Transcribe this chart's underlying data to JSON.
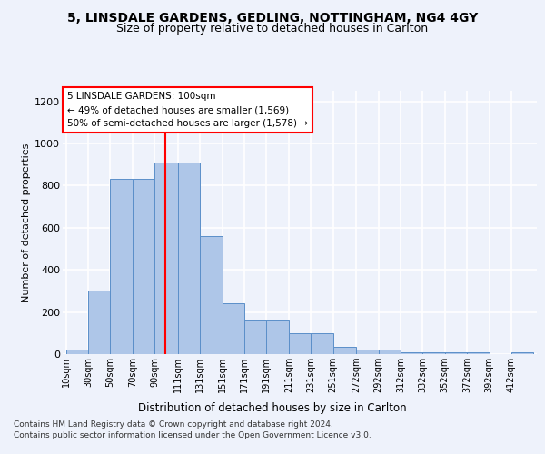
{
  "title1": "5, LINSDALE GARDENS, GEDLING, NOTTINGHAM, NG4 4GY",
  "title2": "Size of property relative to detached houses in Carlton",
  "xlabel": "Distribution of detached houses by size in Carlton",
  "ylabel": "Number of detached properties",
  "bin_labels": [
    "10sqm",
    "30sqm",
    "50sqm",
    "70sqm",
    "90sqm",
    "111sqm",
    "131sqm",
    "151sqm",
    "171sqm",
    "191sqm",
    "211sqm",
    "231sqm",
    "251sqm",
    "272sqm",
    "292sqm",
    "312sqm",
    "332sqm",
    "352sqm",
    "372sqm",
    "392sqm",
    "412sqm"
  ],
  "bin_edges": [
    10,
    30,
    50,
    70,
    90,
    111,
    131,
    151,
    171,
    191,
    211,
    231,
    251,
    272,
    292,
    312,
    332,
    352,
    372,
    392,
    412,
    432
  ],
  "bar_values": [
    20,
    300,
    830,
    830,
    910,
    910,
    560,
    240,
    165,
    165,
    100,
    100,
    35,
    20,
    20,
    10,
    10,
    10,
    10,
    0,
    10
  ],
  "bar_color": "#aec6e8",
  "bar_edgecolor": "#5b8fc9",
  "red_line_x": 100,
  "annotation_text_line1": "5 LINSDALE GARDENS: 100sqm",
  "annotation_text_line2": "← 49% of detached houses are smaller (1,569)",
  "annotation_text_line3": "50% of semi-detached houses are larger (1,578) →",
  "ylim": [
    0,
    1250
  ],
  "yticks": [
    0,
    200,
    400,
    600,
    800,
    1000,
    1200
  ],
  "footer1": "Contains HM Land Registry data © Crown copyright and database right 2024.",
  "footer2": "Contains public sector information licensed under the Open Government Licence v3.0.",
  "background_color": "#eef2fb",
  "plot_background": "#eef2fb",
  "grid_color": "#ffffff"
}
